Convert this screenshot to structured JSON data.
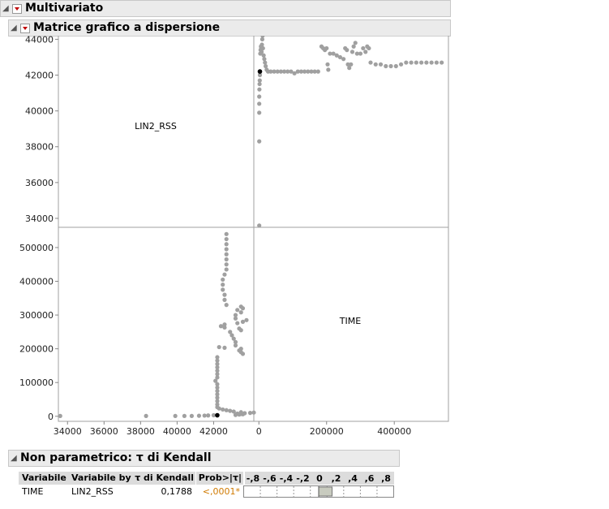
{
  "outline": {
    "main_title": "Multivariato",
    "sub_title": "Matrice grafico a dispersione",
    "kendall_title": "Non parametrico: τ di Kendall"
  },
  "kendall": {
    "headers": [
      "Variabile",
      "Variabile by",
      "τ di Kendall",
      "Prob>|τ|",
      "-,8 -,6 -,4 -,2  0  ,2  ,4  ,6  ,8"
    ],
    "row": {
      "variable": "TIME",
      "by_variable": "LIN2_RSS",
      "tau": "0,1788",
      "prob": "<,0001*",
      "tau_value": 0.1788
    },
    "bar_scale": [
      "-,8",
      "-,6",
      "-,4",
      "-,2",
      "0",
      ",2",
      ",4",
      ",6",
      ",8"
    ]
  },
  "colors": {
    "points": "#a0a0a0",
    "highlight": "#000000",
    "prob": "#d07a00",
    "bar": "#c8cbbf"
  },
  "chart_data": {
    "type": "scatter",
    "diagonal_labels": [
      "LIN2_RSS",
      "TIME"
    ],
    "variables": {
      "LIN2_RSS": {
        "range": [
          33500,
          44200
        ],
        "ticks": [
          "34000",
          "36000",
          "38000",
          "40000",
          "42000",
          "44000"
        ],
        "tick_values": [
          34000,
          36000,
          38000,
          40000,
          42000,
          44000
        ]
      },
      "TIME": {
        "range": [
          -15000,
          560000
        ],
        "ticks": [
          "0",
          "100000",
          "200000",
          "300000",
          "400000",
          "500000"
        ],
        "tick_values": [
          0,
          100000,
          200000,
          300000,
          400000,
          500000
        ],
        "x_ticks": [
          "0",
          "200000",
          "400000"
        ],
        "x_tick_values": [
          0,
          200000,
          400000
        ]
      }
    },
    "bottom_axis_lin_ticks": [
      "34000",
      "36000",
      "38000",
      "40000",
      "42000"
    ],
    "bottom_axis_lin_values": [
      34000,
      36000,
      38000,
      40000,
      42000
    ],
    "points": [
      {
        "time": 1000,
        "lin": 33600
      },
      {
        "time": 1000,
        "lin": 38300
      },
      {
        "time": 1000,
        "lin": 39900
      },
      {
        "time": 1000,
        "lin": 40400
      },
      {
        "time": 1000,
        "lin": 40800
      },
      {
        "time": 1500,
        "lin": 41200
      },
      {
        "time": 2000,
        "lin": 41500
      },
      {
        "time": 2500,
        "lin": 41700
      },
      {
        "time": 3000,
        "lin": 42000
      },
      {
        "time": 4000,
        "lin": 43200
      },
      {
        "time": 5000,
        "lin": 43400
      },
      {
        "time": 6000,
        "lin": 43600
      },
      {
        "time": 7000,
        "lin": 43500
      },
      {
        "time": 8000,
        "lin": 43300
      },
      {
        "time": 9000,
        "lin": 43700
      },
      {
        "time": 10000,
        "lin": 44000
      },
      {
        "time": 11000,
        "lin": 44200
      },
      {
        "time": 12000,
        "lin": 43500
      },
      {
        "time": 14000,
        "lin": 43100
      },
      {
        "time": 16000,
        "lin": 42900
      },
      {
        "time": 18000,
        "lin": 42700
      },
      {
        "time": 20000,
        "lin": 42500
      },
      {
        "time": 23000,
        "lin": 42300
      },
      {
        "time": 27000,
        "lin": 42200
      },
      {
        "time": 35000,
        "lin": 42200
      },
      {
        "time": 45000,
        "lin": 42200
      },
      {
        "time": 55000,
        "lin": 42200
      },
      {
        "time": 65000,
        "lin": 42200
      },
      {
        "time": 75000,
        "lin": 42200
      },
      {
        "time": 85000,
        "lin": 42200
      },
      {
        "time": 95000,
        "lin": 42200
      },
      {
        "time": 105000,
        "lin": 42100
      },
      {
        "time": 115000,
        "lin": 42200
      },
      {
        "time": 125000,
        "lin": 42200
      },
      {
        "time": 135000,
        "lin": 42200
      },
      {
        "time": 145000,
        "lin": 42200
      },
      {
        "time": 155000,
        "lin": 42200
      },
      {
        "time": 165000,
        "lin": 42200
      },
      {
        "time": 175000,
        "lin": 42200
      },
      {
        "time": 185000,
        "lin": 43600
      },
      {
        "time": 190000,
        "lin": 43500
      },
      {
        "time": 195000,
        "lin": 43400
      },
      {
        "time": 200000,
        "lin": 43500
      },
      {
        "time": 203000,
        "lin": 42600
      },
      {
        "time": 205000,
        "lin": 42300
      },
      {
        "time": 210000,
        "lin": 43200
      },
      {
        "time": 220000,
        "lin": 43200
      },
      {
        "time": 230000,
        "lin": 43100
      },
      {
        "time": 240000,
        "lin": 43000
      },
      {
        "time": 250000,
        "lin": 42900
      },
      {
        "time": 255000,
        "lin": 43500
      },
      {
        "time": 260000,
        "lin": 43400
      },
      {
        "time": 263000,
        "lin": 42600
      },
      {
        "time": 267000,
        "lin": 42400
      },
      {
        "time": 272000,
        "lin": 42600
      },
      {
        "time": 276000,
        "lin": 43300
      },
      {
        "time": 280000,
        "lin": 43600
      },
      {
        "time": 285000,
        "lin": 43800
      },
      {
        "time": 290000,
        "lin": 43200
      },
      {
        "time": 300000,
        "lin": 43200
      },
      {
        "time": 308000,
        "lin": 43500
      },
      {
        "time": 315000,
        "lin": 43300
      },
      {
        "time": 320000,
        "lin": 43600
      },
      {
        "time": 325000,
        "lin": 43500
      },
      {
        "time": 330000,
        "lin": 42700
      },
      {
        "time": 345000,
        "lin": 42600
      },
      {
        "time": 360000,
        "lin": 42600
      },
      {
        "time": 375000,
        "lin": 42500
      },
      {
        "time": 390000,
        "lin": 42500
      },
      {
        "time": 405000,
        "lin": 42500
      },
      {
        "time": 420000,
        "lin": 42600
      },
      {
        "time": 435000,
        "lin": 42700
      },
      {
        "time": 450000,
        "lin": 42700
      },
      {
        "time": 465000,
        "lin": 42700
      },
      {
        "time": 480000,
        "lin": 42700
      },
      {
        "time": 495000,
        "lin": 42700
      },
      {
        "time": 510000,
        "lin": 42700
      },
      {
        "time": 525000,
        "lin": 42700
      },
      {
        "time": 540000,
        "lin": 42700
      }
    ],
    "highlight_point": {
      "time": 3000,
      "lin": 42200
    }
  }
}
